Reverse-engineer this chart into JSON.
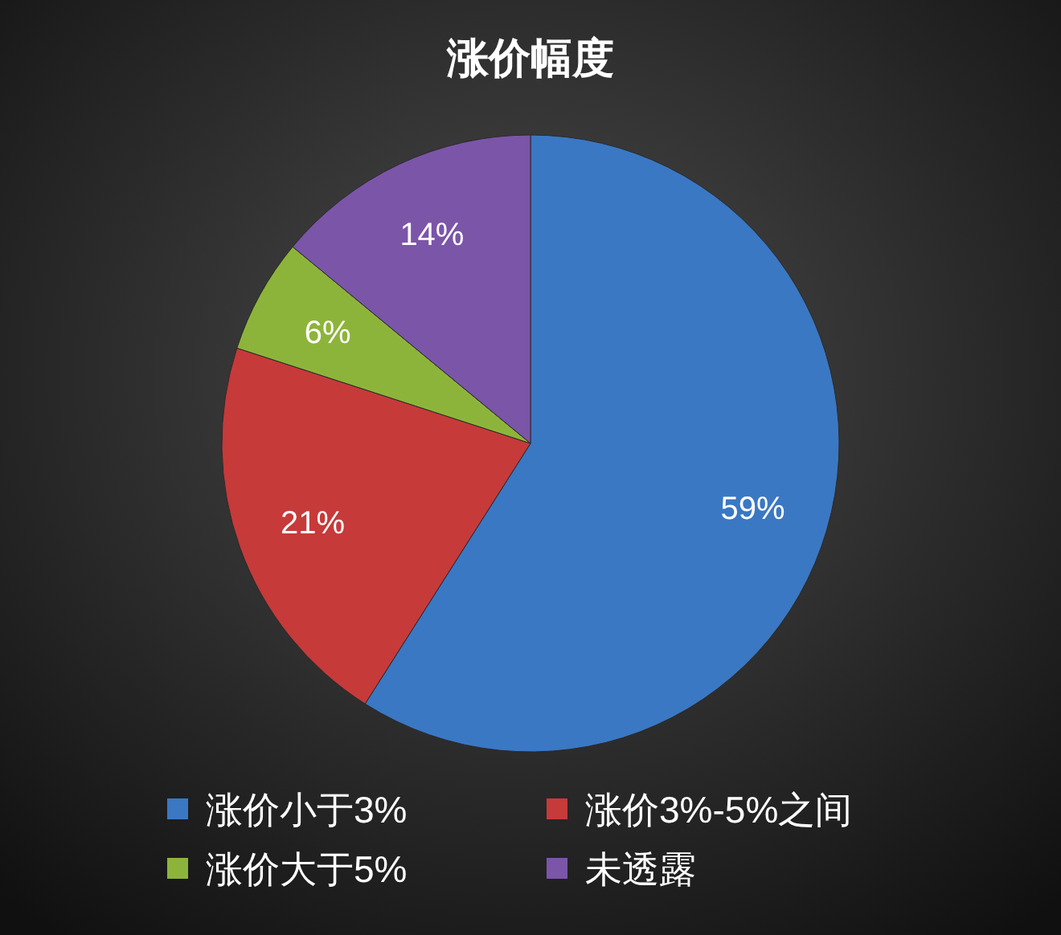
{
  "chart_data": {
    "type": "pie",
    "title": "涨价幅度",
    "categories": [
      "涨价小于3%",
      "涨价3%-5%之间",
      "涨价大于5%",
      "未透露"
    ],
    "values": [
      59,
      21,
      6,
      14
    ],
    "colors": [
      "#3a78c4",
      "#c63a3a",
      "#8db43a",
      "#7b55a8"
    ],
    "value_labels": [
      "59%",
      "21%",
      "6%",
      "14%"
    ],
    "legend": "bottom"
  }
}
